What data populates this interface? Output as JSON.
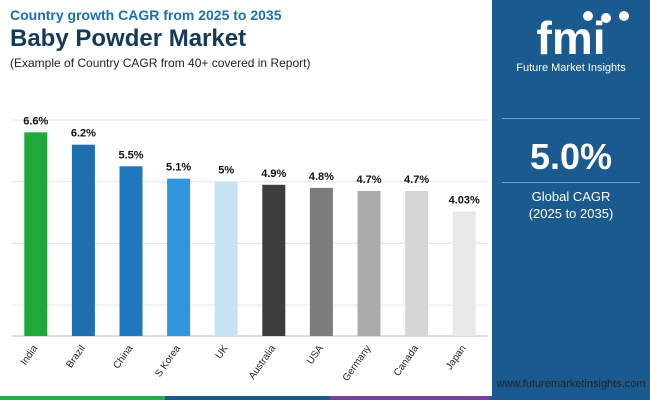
{
  "header": {
    "subtitle_top": "Country growth CAGR from 2025 to 2035",
    "title": "Baby Powder Market",
    "subtitle": "(Example of Country CAGR from 40+ covered in Report)"
  },
  "sidebar": {
    "logo_letters": "fmi",
    "logo_text": "Future Market Insights",
    "kpi_value": "5.0%",
    "kpi_label_1": "Global CAGR",
    "kpi_label_2": "(2025 to 2035)"
  },
  "footer": {
    "website": "www.futuremarketinsights.com"
  },
  "colors": {
    "sidebar_bg": "#1b5a8e",
    "bottom_bar": [
      "#2fa84f",
      "#1b5a8e",
      "#7b3fa0",
      "#1b5a8e"
    ]
  },
  "chart_data": {
    "type": "bar",
    "categories": [
      "India",
      "Brazil",
      "China",
      "S Korea",
      "UK",
      "Australia",
      "USA",
      "Germany",
      "Canada",
      "Japan"
    ],
    "values": [
      6.6,
      6.2,
      5.5,
      5.1,
      5.0,
      4.9,
      4.8,
      4.7,
      4.7,
      4.03
    ],
    "value_labels": [
      "6.6%",
      "6.2%",
      "5.5%",
      "5.1%",
      "5%",
      "4.9%",
      "4.8%",
      "4.7%",
      "4.7%",
      "4.03%"
    ],
    "colors": [
      "#22a83a",
      "#1f6fae",
      "#1f78bd",
      "#3296dc",
      "#c6e3f4",
      "#3c3c3c",
      "#7c7c7c",
      "#ababab",
      "#d6d6d6",
      "#e8e8e8"
    ],
    "ylim": [
      0,
      7
    ],
    "grid": true,
    "xlabel": "",
    "ylabel": ""
  }
}
